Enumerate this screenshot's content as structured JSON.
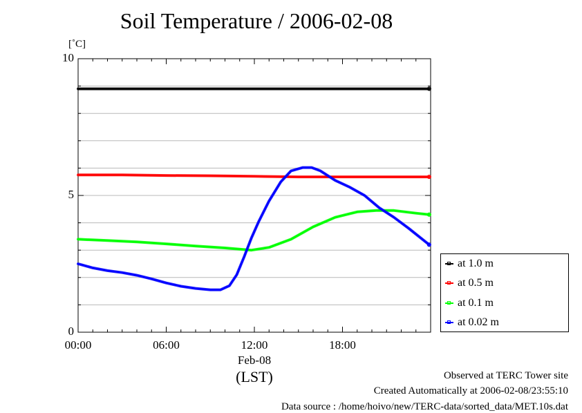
{
  "page": {
    "title": "Soil Temperature / 2006-02-08",
    "unit": "[˚C]",
    "x_date": "Feb-08",
    "x_timezone": "(LST)",
    "footer": {
      "site": "Observed at TERC Tower site",
      "created": "Created Automatically at 2006-02-08/23:55:10",
      "source": "Data source : /home/hoivo/new/TERC-data/sorted_data/MET.10s.dat"
    }
  },
  "chart_data": {
    "type": "line",
    "title": "Soil Temperature / 2006-02-08",
    "ylabel": "[˚C]",
    "xlabel": "(LST)",
    "xlim": [
      0,
      24
    ],
    "ylim": [
      0,
      10
    ],
    "x_ticks": [
      "00:00",
      "06:00",
      "12:00",
      "18:00"
    ],
    "x_tick_values": [
      0,
      6,
      12,
      18
    ],
    "y_ticks": [
      "0",
      "5",
      "10"
    ],
    "y_tick_values": [
      0,
      5,
      10
    ],
    "grid": true,
    "legend": "right, lower",
    "series": [
      {
        "name": "at 1.0 m",
        "color": "#000000",
        "x": [
          0,
          3,
          6,
          9,
          12,
          15,
          18,
          21,
          23.9
        ],
        "values": [
          8.9,
          8.9,
          8.9,
          8.9,
          8.9,
          8.9,
          8.9,
          8.9,
          8.9
        ]
      },
      {
        "name": "at 0.5 m",
        "color": "#ff0000",
        "x": [
          0,
          3,
          6,
          9,
          12,
          15,
          18,
          21,
          23.9
        ],
        "values": [
          5.75,
          5.75,
          5.73,
          5.72,
          5.7,
          5.68,
          5.68,
          5.68,
          5.68
        ]
      },
      {
        "name": "at 0.1 m",
        "color": "#00ff00",
        "x": [
          0,
          2,
          4,
          6,
          8,
          10,
          11.8,
          13,
          14.5,
          16,
          17.5,
          19,
          20.3,
          21.5,
          23,
          23.9
        ],
        "values": [
          3.4,
          3.35,
          3.3,
          3.23,
          3.15,
          3.08,
          3.0,
          3.1,
          3.4,
          3.85,
          4.2,
          4.4,
          4.45,
          4.45,
          4.35,
          4.3
        ],
        "marks": [
          3.4,
          3.0,
          4.45,
          4.3
        ]
      },
      {
        "name": "at 0.02 m",
        "color": "#0000ff",
        "x": [
          0,
          1,
          2,
          3,
          4,
          5,
          6,
          7,
          8,
          9,
          9.7,
          10.3,
          10.8,
          11.3,
          11.8,
          12.3,
          13,
          13.8,
          14.5,
          15.3,
          15.9,
          16.5,
          17.5,
          18.5,
          19.5,
          20.5,
          21.5,
          22.5,
          23.9
        ],
        "values": [
          2.5,
          2.35,
          2.25,
          2.18,
          2.08,
          1.95,
          1.8,
          1.68,
          1.6,
          1.55,
          1.55,
          1.7,
          2.1,
          2.75,
          3.45,
          4.05,
          4.8,
          5.5,
          5.9,
          6.02,
          6.02,
          5.9,
          5.55,
          5.3,
          5.0,
          4.55,
          4.2,
          3.8,
          3.2
        ]
      }
    ]
  }
}
